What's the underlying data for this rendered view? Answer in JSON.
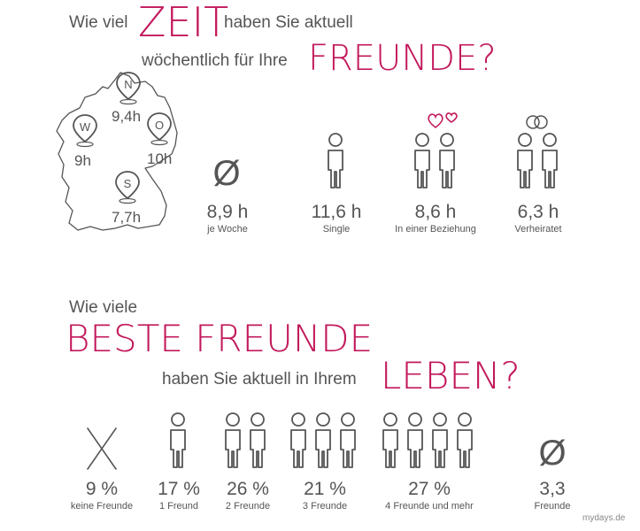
{
  "section1": {
    "line1_pre": "Wie viel",
    "line1_big": "ZEIT",
    "line1_post": "haben Sie aktuell",
    "line2_pre": "wöchentlich für Ihre",
    "line2_big": "FREUNDE?",
    "regions": [
      {
        "letter": "N",
        "value": "9,4h"
      },
      {
        "letter": "W",
        "value": "9h"
      },
      {
        "letter": "O",
        "value": "10h"
      },
      {
        "letter": "S",
        "value": "7,7h"
      }
    ],
    "average": {
      "symbol": "Ø",
      "value": "8,9 h",
      "label": "je Woche"
    },
    "status": [
      {
        "value": "11,6 h",
        "label": "Single"
      },
      {
        "value": "8,6 h",
        "label": "In einer Beziehung"
      },
      {
        "value": "6,3 h",
        "label": "Verheiratet"
      }
    ]
  },
  "section2": {
    "line1": "Wie viele",
    "line2_big": "BESTE FREUNDE",
    "line3_pre": "haben Sie aktuell in Ihrem",
    "line3_big": "LEBEN?",
    "items": [
      {
        "value": "9 %",
        "label": "keine Freunde"
      },
      {
        "value": "17 %",
        "label": "1 Freund"
      },
      {
        "value": "26 %",
        "label": "2 Freunde"
      },
      {
        "value": "21 %",
        "label": "3 Freunde"
      },
      {
        "value": "27 %",
        "label": "4 Freunde und mehr"
      }
    ],
    "average": {
      "symbol": "Ø",
      "value": "3,3",
      "label": "Freunde"
    }
  },
  "credit": "mydays.de",
  "colors": {
    "accent": "#c2185b",
    "text": "#555555"
  }
}
